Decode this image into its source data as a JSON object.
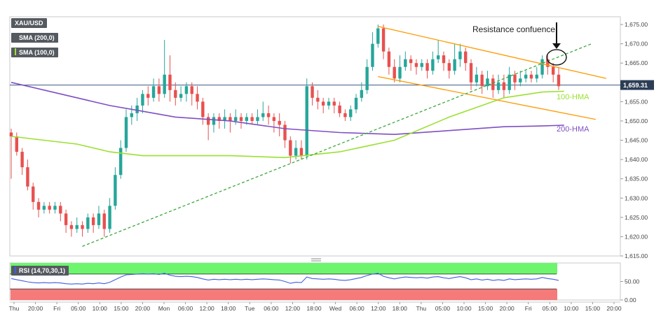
{
  "chart_data": {
    "type": "line",
    "symbol": "XAU/USD",
    "indicators": [
      {
        "name": "SMA (200,0)",
        "color": "#555a60"
      },
      {
        "name": "SMA (100,0)",
        "color": "#9be032"
      }
    ],
    "price_axis": {
      "ticks": [
        "1,675.00",
        "1,670.00",
        "1,665.00",
        "1,660.00",
        "1,655.00",
        "1,650.00",
        "1,645.00",
        "1,640.00",
        "1,635.00",
        "1,630.00",
        "1,625.00",
        "1,620.00",
        "1,615.00"
      ],
      "ylim": [
        1615,
        1677
      ]
    },
    "current_price": {
      "label": "1,659.31",
      "value": 1659.31
    },
    "time_axis": [
      "Thu",
      "20:00",
      "Fri",
      "05:00",
      "10:00",
      "15:00",
      "20:00",
      "Mon",
      "06:00",
      "12:00",
      "18:00",
      "Tue",
      "06:00",
      "12:00",
      "18:00",
      "Wed",
      "06:00",
      "12:00",
      "18:00",
      "Thu",
      "05:00",
      "10:00",
      "15:00",
      "20:00",
      "Fri",
      "05:00",
      "10:00",
      "15:00",
      "20:00"
    ],
    "candles": [
      [
        1647,
        1646,
        1648,
        1635
      ],
      [
        1646,
        1642,
        1647,
        1641
      ],
      [
        1642,
        1638,
        1643,
        1636
      ],
      [
        1638,
        1633,
        1640,
        1632
      ],
      [
        1633,
        1629,
        1634,
        1627
      ],
      [
        1629,
        1627,
        1630,
        1625
      ],
      [
        1627,
        1628,
        1629,
        1626
      ],
      [
        1628,
        1627,
        1629,
        1626
      ],
      [
        1627,
        1628,
        1629,
        1626
      ],
      [
        1628,
        1626,
        1629,
        1624
      ],
      [
        1626,
        1623,
        1627,
        1621
      ],
      [
        1623,
        1622,
        1624,
        1620
      ],
      [
        1622,
        1623,
        1625,
        1621
      ],
      [
        1623,
        1622,
        1624,
        1620
      ],
      [
        1622,
        1625,
        1626,
        1621
      ],
      [
        1625,
        1623,
        1626,
        1621
      ],
      [
        1623,
        1626,
        1628,
        1622
      ],
      [
        1626,
        1622,
        1627,
        1620
      ],
      [
        1622,
        1628,
        1630,
        1621
      ],
      [
        1628,
        1636,
        1638,
        1627
      ],
      [
        1636,
        1643,
        1645,
        1635
      ],
      [
        1643,
        1651,
        1653,
        1642
      ],
      [
        1651,
        1652,
        1654,
        1649
      ],
      [
        1652,
        1654,
        1656,
        1650
      ],
      [
        1654,
        1657,
        1658,
        1652
      ],
      [
        1657,
        1656,
        1659,
        1654
      ],
      [
        1656,
        1659,
        1661,
        1655
      ],
      [
        1659,
        1657,
        1661,
        1655
      ],
      [
        1657,
        1662,
        1671,
        1656
      ],
      [
        1662,
        1658,
        1667,
        1655
      ],
      [
        1658,
        1656,
        1660,
        1654
      ],
      [
        1656,
        1657,
        1659,
        1655
      ],
      [
        1657,
        1659,
        1660,
        1655
      ],
      [
        1659,
        1657,
        1660,
        1654
      ],
      [
        1657,
        1655,
        1659,
        1653
      ],
      [
        1655,
        1651,
        1656,
        1649
      ],
      [
        1651,
        1649,
        1652,
        1645
      ],
      [
        1649,
        1651,
        1652,
        1647
      ],
      [
        1651,
        1650,
        1652,
        1648
      ],
      [
        1650,
        1651,
        1653,
        1648
      ],
      [
        1651,
        1650,
        1652,
        1647
      ],
      [
        1650,
        1651,
        1653,
        1649
      ],
      [
        1651,
        1650,
        1652,
        1648
      ],
      [
        1650,
        1651,
        1652,
        1649
      ],
      [
        1651,
        1650,
        1652,
        1649
      ],
      [
        1650,
        1651,
        1653,
        1649
      ],
      [
        1651,
        1652,
        1655,
        1650
      ],
      [
        1652,
        1651,
        1654,
        1649
      ],
      [
        1651,
        1650,
        1652,
        1647
      ],
      [
        1650,
        1649,
        1652,
        1646
      ],
      [
        1649,
        1645,
        1650,
        1643
      ],
      [
        1645,
        1641,
        1646,
        1639
      ],
      [
        1641,
        1643,
        1645,
        1640
      ],
      [
        1643,
        1641,
        1645,
        1640
      ],
      [
        1641,
        1659,
        1661,
        1640
      ],
      [
        1659,
        1656,
        1660,
        1654
      ],
      [
        1656,
        1655,
        1658,
        1653
      ],
      [
        1655,
        1654,
        1656,
        1652
      ],
      [
        1654,
        1655,
        1656,
        1653
      ],
      [
        1655,
        1654,
        1656,
        1652
      ],
      [
        1654,
        1652,
        1655,
        1651
      ],
      [
        1652,
        1651,
        1653,
        1650
      ],
      [
        1651,
        1653,
        1654,
        1650
      ],
      [
        1653,
        1656,
        1657,
        1652
      ],
      [
        1656,
        1658,
        1660,
        1655
      ],
      [
        1658,
        1664,
        1666,
        1657
      ],
      [
        1664,
        1670,
        1673,
        1663
      ],
      [
        1670,
        1674,
        1675,
        1669
      ],
      [
        1674,
        1668,
        1675,
        1666
      ],
      [
        1668,
        1664,
        1669,
        1662
      ],
      [
        1664,
        1661,
        1666,
        1660
      ],
      [
        1661,
        1664,
        1667,
        1660
      ],
      [
        1664,
        1666,
        1668,
        1663
      ],
      [
        1666,
        1665,
        1667,
        1663
      ],
      [
        1665,
        1664,
        1666,
        1662
      ],
      [
        1664,
        1665,
        1666,
        1663
      ],
      [
        1665,
        1663,
        1666,
        1661
      ],
      [
        1663,
        1666,
        1668,
        1662
      ],
      [
        1666,
        1667,
        1671,
        1665
      ],
      [
        1667,
        1665,
        1668,
        1663
      ],
      [
        1665,
        1663,
        1666,
        1661
      ],
      [
        1663,
        1666,
        1670,
        1662
      ],
      [
        1666,
        1668,
        1670,
        1664
      ],
      [
        1668,
        1665,
        1669,
        1663
      ],
      [
        1665,
        1660,
        1666,
        1658
      ],
      [
        1660,
        1662,
        1664,
        1659
      ],
      [
        1662,
        1659,
        1663,
        1657
      ],
      [
        1659,
        1661,
        1663,
        1658
      ],
      [
        1661,
        1658,
        1662,
        1656
      ],
      [
        1658,
        1660,
        1662,
        1657
      ],
      [
        1660,
        1658,
        1662,
        1656
      ],
      [
        1658,
        1662,
        1664,
        1657
      ],
      [
        1662,
        1660,
        1663,
        1658
      ],
      [
        1660,
        1661,
        1663,
        1659
      ],
      [
        1661,
        1662,
        1663,
        1660
      ],
      [
        1662,
        1661,
        1663,
        1660
      ],
      [
        1661,
        1662,
        1664,
        1660
      ],
      [
        1662,
        1666,
        1667,
        1661
      ],
      [
        1666,
        1664,
        1667,
        1662
      ],
      [
        1664,
        1662,
        1665,
        1660
      ],
      [
        1662,
        1659,
        1664,
        1658
      ]
    ],
    "sma_100": {
      "name": "100-HMA",
      "values": [
        [
          0,
          1646
        ],
        [
          6,
          1645
        ],
        [
          12,
          1644
        ],
        [
          18,
          1642
        ],
        [
          24,
          1641
        ],
        [
          30,
          1641
        ],
        [
          40,
          1641
        ],
        [
          50,
          1640.5
        ],
        [
          60,
          1642
        ],
        [
          70,
          1645
        ],
        [
          80,
          1651
        ],
        [
          90,
          1656
        ],
        [
          97,
          1657.5
        ],
        [
          101,
          1657.7
        ]
      ]
    },
    "sma_200": {
      "name": "200-HMA",
      "values": [
        [
          0,
          1660
        ],
        [
          6,
          1658
        ],
        [
          12,
          1656
        ],
        [
          18,
          1654
        ],
        [
          24,
          1652.5
        ],
        [
          30,
          1651
        ],
        [
          40,
          1650
        ],
        [
          50,
          1648
        ],
        [
          60,
          1647
        ],
        [
          70,
          1646.5
        ],
        [
          80,
          1647.5
        ],
        [
          90,
          1648.5
        ],
        [
          97,
          1648.7
        ],
        [
          101,
          1648.9
        ]
      ]
    },
    "channel": {
      "upper": [
        [
          1674.5,
          67
        ],
        [
          1663.5,
          101
        ]
      ],
      "lower": [
        [
          1661.5,
          67
        ],
        [
          1652,
          101
        ]
      ]
    },
    "support_line": {
      "points": [
        [
          1617.5,
          13
        ],
        [
          1670,
          106
        ]
      ]
    },
    "annotations": {
      "resistance": "Resistance confuence",
      "label_100": "100-HMA",
      "label_200": "200-HMA"
    },
    "rsi": {
      "label": "RSI (14,70,30,1)",
      "ticks": [
        "50.00",
        "0.00"
      ],
      "ylim": [
        0,
        100
      ],
      "values": [
        58,
        55,
        52,
        49,
        47,
        46,
        47,
        46,
        47,
        46,
        44,
        43,
        44,
        43,
        45,
        44,
        46,
        44,
        48,
        55,
        62,
        68,
        69,
        70,
        71,
        70,
        71,
        69,
        72,
        67,
        64,
        63,
        64,
        63,
        61,
        57,
        54,
        56,
        55,
        56,
        55,
        56,
        55,
        56,
        55,
        56,
        57,
        56,
        55,
        54,
        50,
        45,
        48,
        47,
        62,
        58,
        57,
        56,
        57,
        56,
        54,
        53,
        55,
        58,
        61,
        66,
        70,
        72,
        64,
        60,
        57,
        60,
        62,
        61,
        60,
        61,
        59,
        62,
        63,
        60,
        58,
        61,
        63,
        60,
        55,
        57,
        54,
        56,
        53,
        55,
        53,
        57,
        55,
        56,
        57,
        56,
        57,
        61,
        58,
        56,
        53
      ]
    },
    "colors": {
      "bull": "#26a69a",
      "bear": "#e8504f",
      "sma100": "#9be032",
      "sma200": "#7e4fc2",
      "channel": "#ff9900",
      "support": "#3aa83a",
      "rsi_line": "#3f5fe0",
      "rsi_over": "#6df56d",
      "rsi_under": "#f57a7a",
      "price_line": "#3b5a80"
    }
  }
}
